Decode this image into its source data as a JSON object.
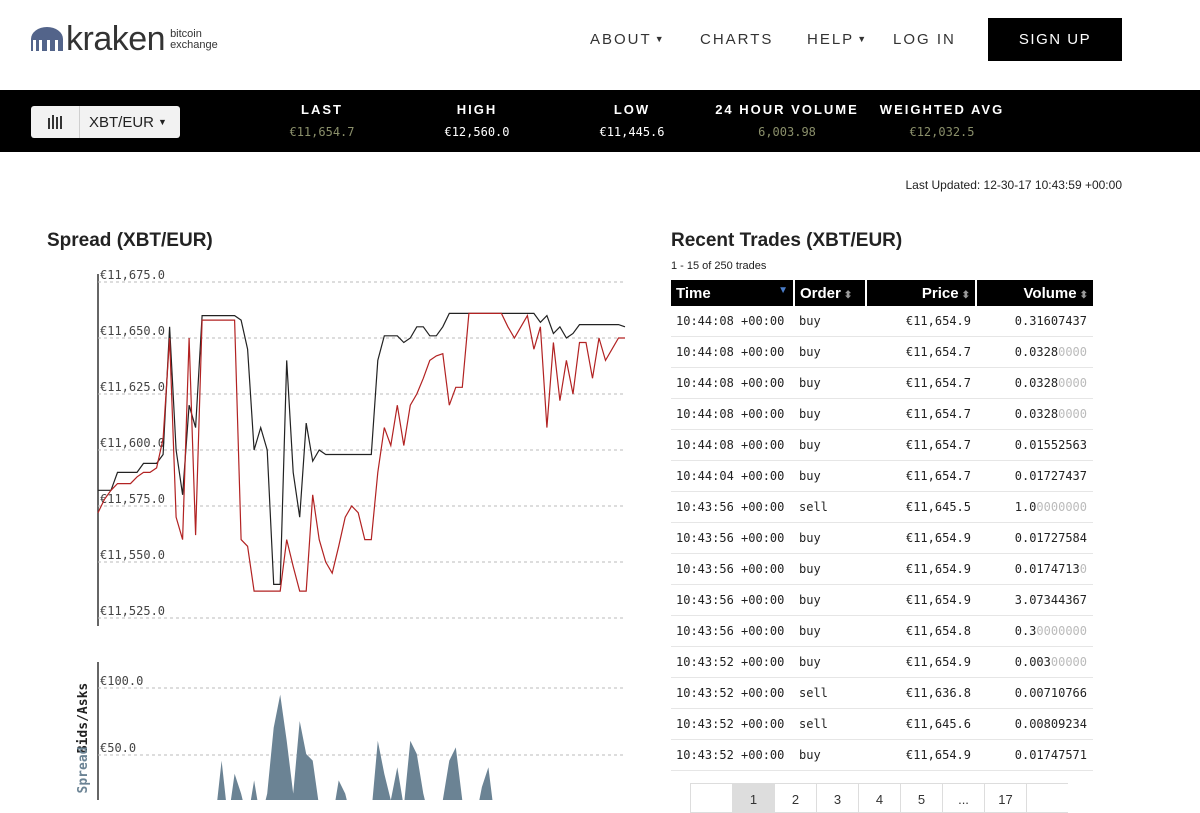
{
  "header": {
    "logo_word": "kraken",
    "logo_sub_1": "bitcoin",
    "logo_sub_2": "exchange",
    "nav": [
      {
        "label": "ABOUT",
        "dropdown": true
      },
      {
        "label": "CHARTS",
        "dropdown": false
      },
      {
        "label": "HELP",
        "dropdown": true
      },
      {
        "label": "LOG IN",
        "dropdown": false
      }
    ],
    "signup_label": "SIGN UP"
  },
  "ticker": {
    "pair": "XBT/EUR",
    "stats": [
      {
        "label": "LAST",
        "value": "€11,654.7",
        "color": "#8a8f6a"
      },
      {
        "label": "HIGH",
        "value": "€12,560.0",
        "color": "#ffffff"
      },
      {
        "label": "LOW",
        "value": "€11,445.6",
        "color": "#ffffff"
      },
      {
        "label": "24 HOUR VOLUME",
        "value": "6,003.98",
        "color": "#8a8f6a"
      },
      {
        "label": "WEIGHTED AVG",
        "value": "€12,032.5",
        "color": "#8a8f6a"
      }
    ]
  },
  "last_updated": "Last Updated: 12-30-17 10:43:59 +00:00",
  "spread_section": {
    "title": "Spread (XBT/EUR)"
  },
  "chart_data": [
    {
      "type": "line",
      "ylabel": "Bids/Asks",
      "ylim": [
        11525,
        11675
      ],
      "y_ticks": [
        "€11,675.0",
        "€11,650.0",
        "€11,625.0",
        "€11,600.0",
        "€11,575.0",
        "€11,550.0",
        "€11,525.0"
      ],
      "series": [
        {
          "values": [
            11582,
            11582,
            11582,
            11590,
            11590,
            11590,
            11590,
            11594,
            11594,
            11594,
            11598,
            11655,
            11600,
            11580,
            11620,
            11610,
            11660,
            11660,
            11660,
            11660,
            11660,
            11660,
            11658,
            11645,
            11600,
            11610,
            11600,
            11540,
            11540,
            11640,
            11590,
            11570,
            11612,
            11595,
            11600,
            11598,
            11598,
            11598,
            11598,
            11598,
            11598,
            11598,
            11598,
            11640,
            11651,
            11651,
            11651,
            11648,
            11650,
            11655,
            11655,
            11651,
            11651,
            11655,
            11661,
            11661,
            11661,
            11661,
            11661,
            11661,
            11661,
            11661,
            11661,
            11661,
            11661,
            11661,
            11661,
            11661,
            11657,
            11660,
            11652,
            11655,
            11650,
            11652,
            11656,
            11656,
            11656,
            11656,
            11656,
            11656,
            11656,
            11655
          ],
          "color": "#222222"
        },
        {
          "values": [
            11572,
            11578,
            11582,
            11585,
            11585,
            11585,
            11588,
            11590,
            11590,
            11592,
            11605,
            11650,
            11570,
            11560,
            11650,
            11562,
            11658,
            11658,
            11658,
            11658,
            11658,
            11658,
            11560,
            11557,
            11537,
            11537,
            11537,
            11537,
            11537,
            11560,
            11548,
            11537,
            11537,
            11580,
            11560,
            11550,
            11545,
            11557,
            11570,
            11575,
            11572,
            11560,
            11560,
            11590,
            11610,
            11602,
            11620,
            11602,
            11620,
            11625,
            11632,
            11640,
            11642,
            11643,
            11620,
            11628,
            11628,
            11661,
            11661,
            11661,
            11661,
            11661,
            11661,
            11655,
            11650,
            11655,
            11660,
            11645,
            11655,
            11610,
            11648,
            11622,
            11640,
            11625,
            11648,
            11648,
            11632,
            11650,
            11640,
            11645,
            11650,
            11650
          ],
          "color": "#b22222"
        }
      ]
    },
    {
      "type": "area",
      "ylabel": "Spread",
      "y_ticks": [
        "€100.0",
        "€50.0"
      ],
      "series": [
        {
          "values": [
            0,
            0,
            0,
            0,
            0,
            0,
            5,
            0,
            0,
            0,
            0,
            0,
            0,
            0,
            0,
            0,
            0,
            0,
            0,
            45,
            0,
            35,
            20,
            0,
            30,
            0,
            20,
            70,
            95,
            60,
            20,
            75,
            50,
            45,
            10,
            15,
            0,
            30,
            20,
            0,
            10,
            0,
            5,
            60,
            35,
            15,
            40,
            10,
            60,
            50,
            20,
            0,
            0,
            15,
            45,
            55,
            15,
            0,
            0,
            25,
            40,
            0,
            15,
            10,
            0,
            0,
            0,
            0,
            10,
            0,
            0,
            0,
            0,
            0,
            0,
            0,
            0,
            0,
            0,
            0,
            0,
            0
          ],
          "color": "#6b8394"
        }
      ]
    }
  ],
  "trades": {
    "title": "Recent Trades (XBT/EUR)",
    "subtitle": "1 - 15 of 250 trades",
    "columns": [
      "Time",
      "Order",
      "Price",
      "Volume"
    ],
    "rows": [
      {
        "time": "10:44:08 +00:00",
        "order": "buy",
        "price": "€11,654.9",
        "vol": "0.31607437",
        "vol_dim": ""
      },
      {
        "time": "10:44:08 +00:00",
        "order": "buy",
        "price": "€11,654.7",
        "vol": "0.0328",
        "vol_dim": "0000"
      },
      {
        "time": "10:44:08 +00:00",
        "order": "buy",
        "price": "€11,654.7",
        "vol": "0.0328",
        "vol_dim": "0000"
      },
      {
        "time": "10:44:08 +00:00",
        "order": "buy",
        "price": "€11,654.7",
        "vol": "0.0328",
        "vol_dim": "0000"
      },
      {
        "time": "10:44:08 +00:00",
        "order": "buy",
        "price": "€11,654.7",
        "vol": "0.01552563",
        "vol_dim": ""
      },
      {
        "time": "10:44:04 +00:00",
        "order": "buy",
        "price": "€11,654.7",
        "vol": "0.01727437",
        "vol_dim": ""
      },
      {
        "time": "10:43:56 +00:00",
        "order": "sell",
        "price": "€11,645.5",
        "vol": "1.0",
        "vol_dim": "0000000"
      },
      {
        "time": "10:43:56 +00:00",
        "order": "buy",
        "price": "€11,654.9",
        "vol": "0.01727584",
        "vol_dim": ""
      },
      {
        "time": "10:43:56 +00:00",
        "order": "buy",
        "price": "€11,654.9",
        "vol": "0.0174713",
        "vol_dim": "0"
      },
      {
        "time": "10:43:56 +00:00",
        "order": "buy",
        "price": "€11,654.9",
        "vol": "3.07344367",
        "vol_dim": ""
      },
      {
        "time": "10:43:56 +00:00",
        "order": "buy",
        "price": "€11,654.8",
        "vol": "0.3",
        "vol_dim": "0000000"
      },
      {
        "time": "10:43:52 +00:00",
        "order": "buy",
        "price": "€11,654.9",
        "vol": "0.003",
        "vol_dim": "00000"
      },
      {
        "time": "10:43:52 +00:00",
        "order": "sell",
        "price": "€11,636.8",
        "vol": "0.00710766",
        "vol_dim": ""
      },
      {
        "time": "10:43:52 +00:00",
        "order": "sell",
        "price": "€11,645.6",
        "vol": "0.00809234",
        "vol_dim": ""
      },
      {
        "time": "10:43:52 +00:00",
        "order": "buy",
        "price": "€11,654.9",
        "vol": "0.01747571",
        "vol_dim": ""
      }
    ],
    "pager": [
      "",
      "1",
      "2",
      "3",
      "4",
      "5",
      "...",
      "17",
      ""
    ]
  }
}
